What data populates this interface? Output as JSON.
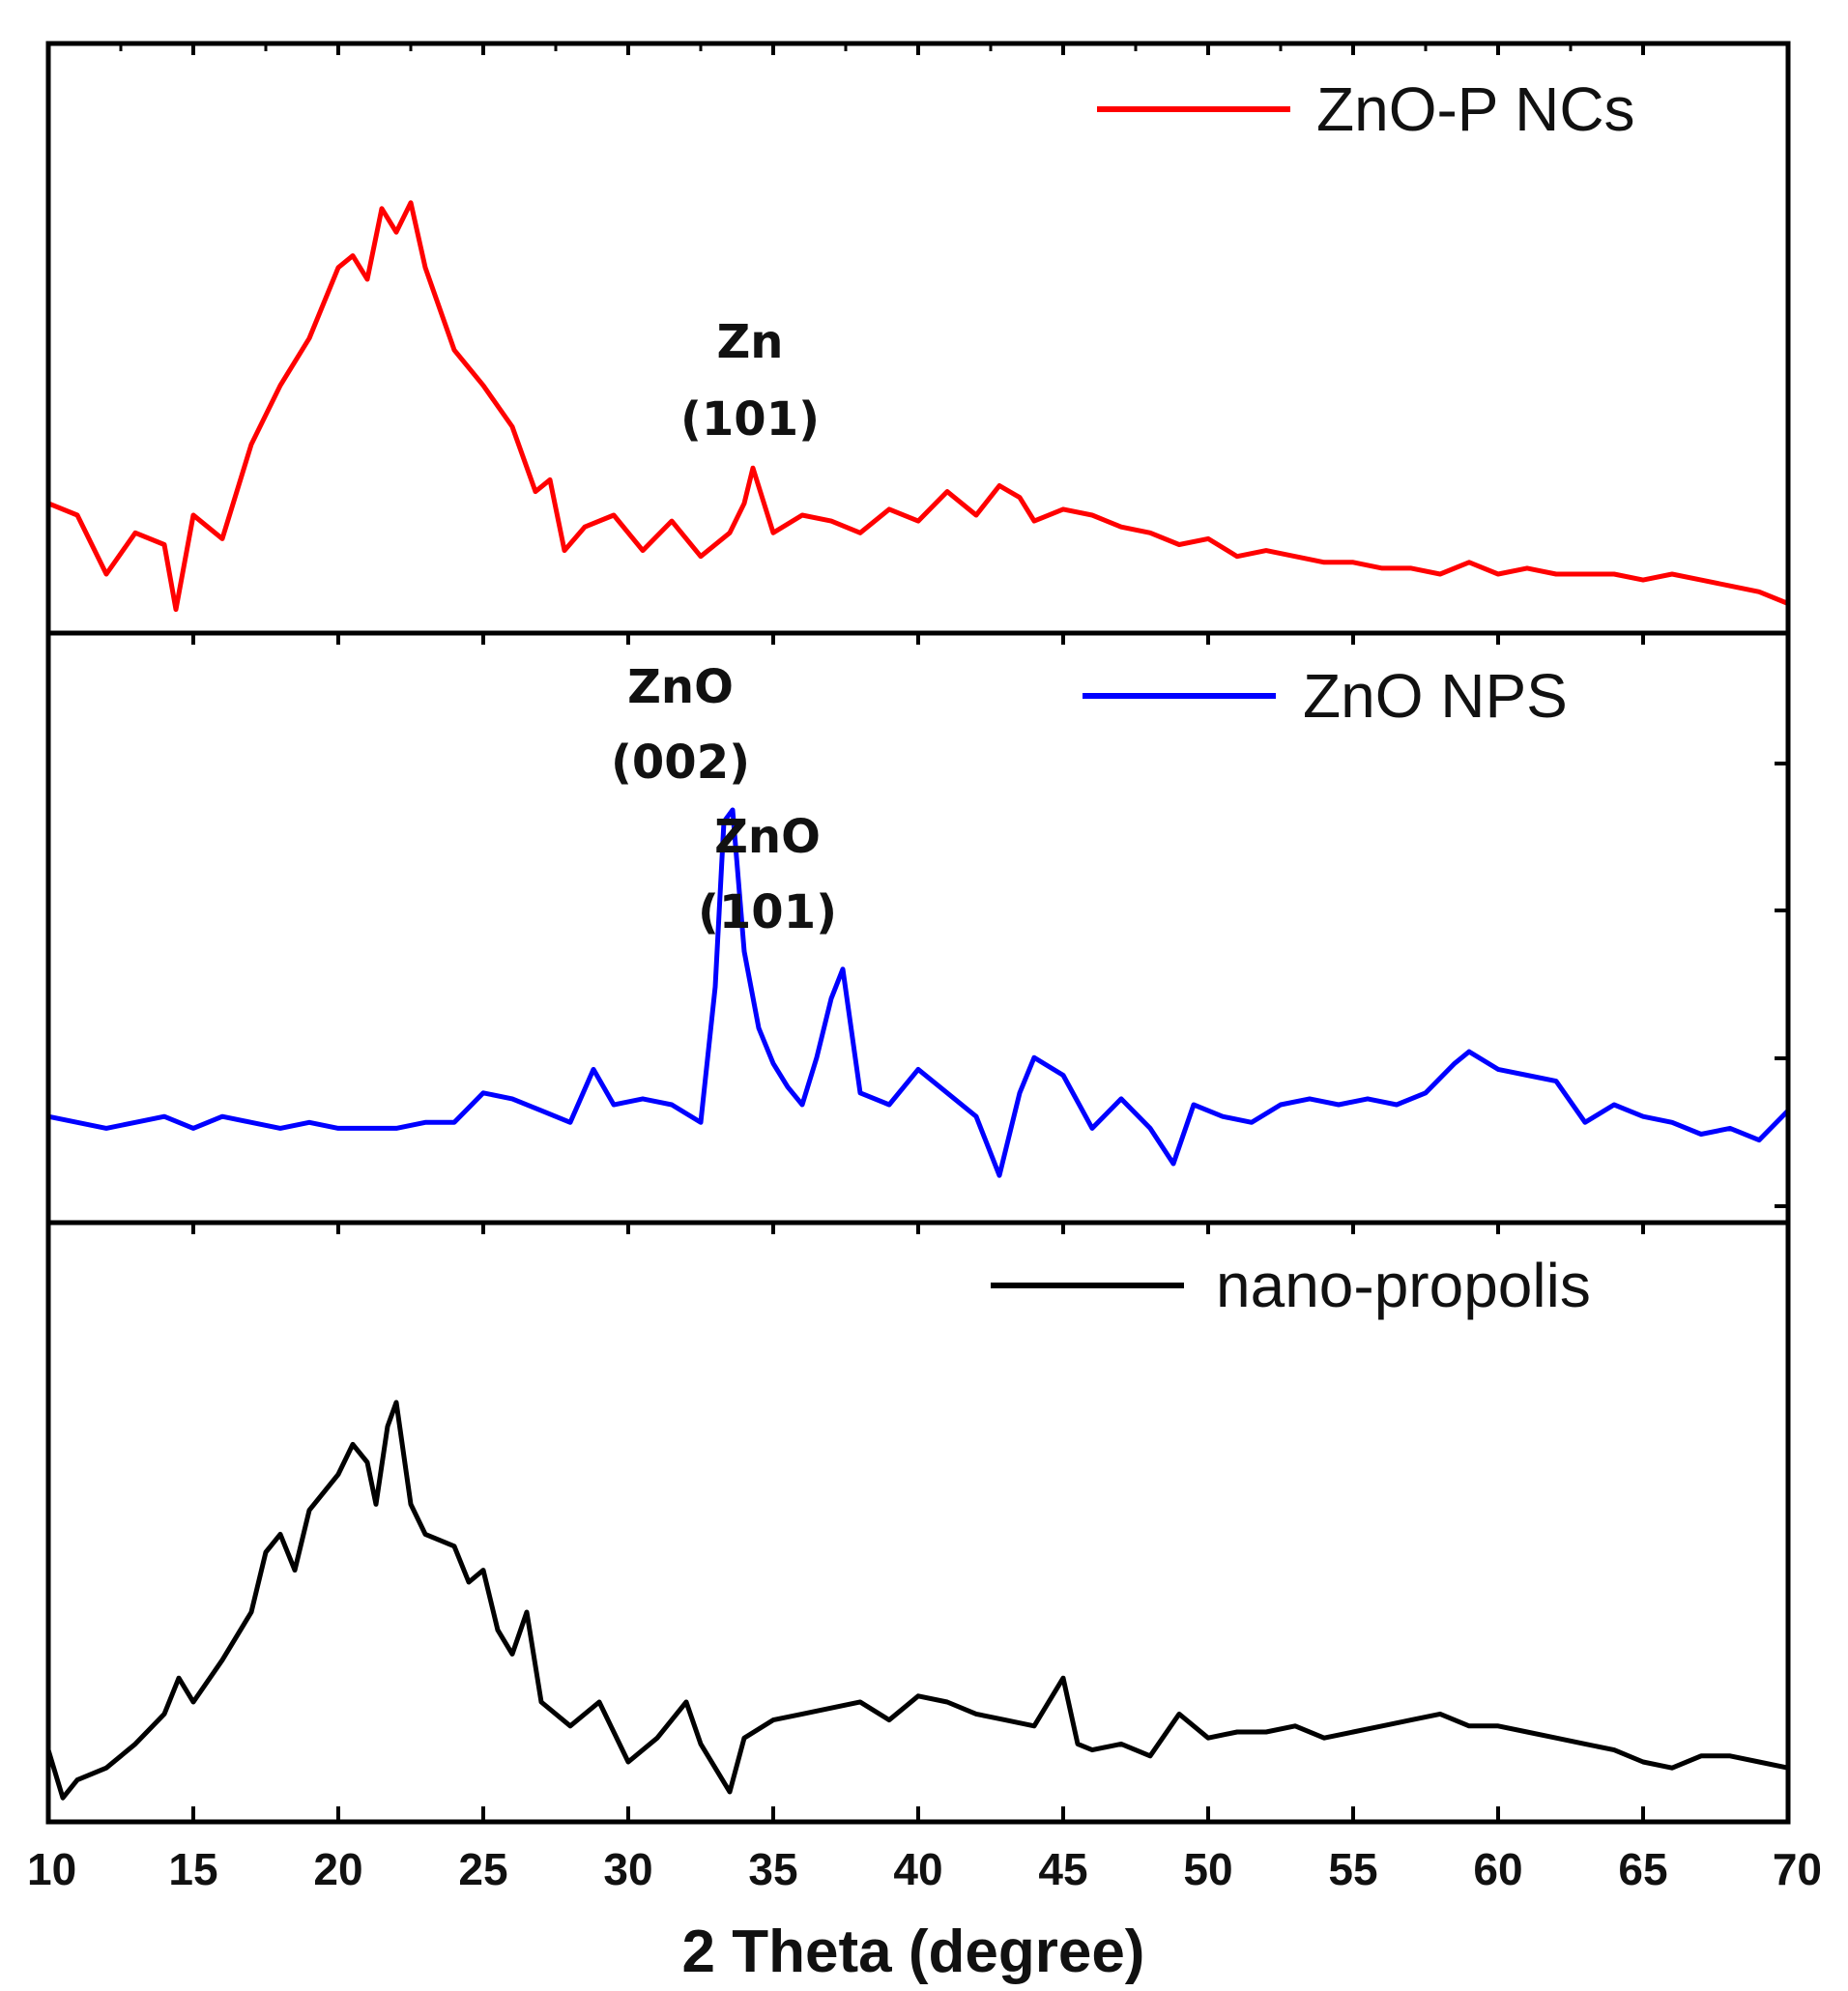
{
  "chart_data": {
    "type": "line",
    "title": "",
    "xlabel": "2 Theta (degree)",
    "ylabel": "",
    "xlim": [
      10,
      70
    ],
    "xticks": [
      10,
      15,
      20,
      25,
      30,
      35,
      40,
      45,
      50,
      55,
      60,
      65,
      70
    ],
    "xtick_labels": [
      "10",
      "15",
      "20",
      "25",
      "30",
      "35",
      "40",
      "45",
      "50",
      "55",
      "60",
      "65",
      "70"
    ],
    "grid": false,
    "stacked_panels": true,
    "panels": [
      {
        "legend": "ZnO-P NCs",
        "legend_placement": "top-right",
        "color": "#ff0000",
        "ylim": [
          0,
          1
        ],
        "x": [
          10,
          11,
          12,
          13,
          14,
          14.4,
          15,
          16,
          17,
          18,
          19,
          20,
          20.5,
          21,
          21.5,
          22,
          22.5,
          23,
          23.5,
          24,
          25,
          26,
          26.8,
          27.3,
          27.8,
          28.5,
          29.5,
          30.5,
          31.5,
          32.5,
          33.5,
          34,
          34.3,
          35,
          36,
          37,
          38,
          39,
          40,
          41,
          42,
          42.8,
          43.5,
          44,
          45,
          46,
          47,
          48,
          49,
          50,
          51,
          52,
          53,
          54,
          55,
          56,
          57,
          58,
          59,
          60,
          61,
          62,
          63,
          64,
          65,
          66,
          67,
          68,
          69,
          70
        ],
        "values": [
          0.22,
          0.2,
          0.1,
          0.17,
          0.15,
          0.04,
          0.2,
          0.16,
          0.32,
          0.42,
          0.5,
          0.62,
          0.64,
          0.6,
          0.72,
          0.68,
          0.73,
          0.62,
          0.55,
          0.48,
          0.42,
          0.35,
          0.24,
          0.26,
          0.14,
          0.18,
          0.2,
          0.14,
          0.19,
          0.13,
          0.17,
          0.22,
          0.28,
          0.17,
          0.2,
          0.19,
          0.17,
          0.21,
          0.19,
          0.24,
          0.2,
          0.25,
          0.23,
          0.19,
          0.21,
          0.2,
          0.18,
          0.17,
          0.15,
          0.16,
          0.13,
          0.14,
          0.13,
          0.12,
          0.12,
          0.11,
          0.11,
          0.1,
          0.12,
          0.1,
          0.11,
          0.1,
          0.1,
          0.1,
          0.09,
          0.1,
          0.09,
          0.08,
          0.07,
          0.05
        ]
      },
      {
        "legend": "ZnO  NPS",
        "legend_placement": "top-right",
        "color": "#0000ff",
        "ylim": [
          0,
          1
        ],
        "x": [
          10,
          11,
          12,
          13,
          14,
          15,
          16,
          17,
          18,
          19,
          20,
          21,
          22,
          23,
          24,
          25,
          26,
          27,
          28,
          28.8,
          29.5,
          30.5,
          31.5,
          32.5,
          33,
          33.3,
          33.6,
          34,
          34.5,
          35,
          35.5,
          36,
          36.5,
          37,
          37.4,
          38,
          39,
          40,
          41,
          42,
          42.8,
          43.5,
          44,
          45,
          46,
          47,
          48,
          48.8,
          49.5,
          50.5,
          51.5,
          52.5,
          53.5,
          54.5,
          55.5,
          56.5,
          57.5,
          58.5,
          59,
          60,
          61,
          62,
          63,
          64,
          65,
          66,
          67,
          68,
          69,
          70
        ],
        "values": [
          0.18,
          0.17,
          0.16,
          0.17,
          0.18,
          0.16,
          0.18,
          0.17,
          0.16,
          0.17,
          0.16,
          0.16,
          0.16,
          0.17,
          0.17,
          0.22,
          0.21,
          0.19,
          0.17,
          0.26,
          0.2,
          0.21,
          0.2,
          0.17,
          0.4,
          0.68,
          0.7,
          0.46,
          0.33,
          0.27,
          0.23,
          0.2,
          0.28,
          0.38,
          0.43,
          0.22,
          0.2,
          0.26,
          0.22,
          0.18,
          0.08,
          0.22,
          0.28,
          0.25,
          0.16,
          0.21,
          0.16,
          0.1,
          0.2,
          0.18,
          0.17,
          0.2,
          0.21,
          0.2,
          0.21,
          0.2,
          0.22,
          0.27,
          0.29,
          0.26,
          0.25,
          0.24,
          0.17,
          0.2,
          0.18,
          0.17,
          0.15,
          0.16,
          0.14,
          0.19
        ]
      },
      {
        "legend": "nano-propolis",
        "legend_placement": "top-right",
        "color": "#000000",
        "ylim": [
          0,
          1
        ],
        "x": [
          10,
          10.5,
          11,
          12,
          13,
          14,
          14.5,
          15,
          16,
          17,
          17.5,
          18,
          18.5,
          19,
          20,
          20.5,
          21,
          21.3,
          21.7,
          22,
          22.5,
          23,
          24,
          24.5,
          25,
          25.5,
          26,
          26.5,
          27,
          28,
          29,
          30,
          31,
          32,
          32.5,
          33,
          33.5,
          34,
          35,
          36,
          37,
          38,
          39,
          40,
          41,
          42,
          43,
          44,
          45,
          45.5,
          46,
          47,
          48,
          49,
          50,
          51,
          52,
          53,
          54,
          55,
          56,
          57,
          58,
          59,
          60,
          61,
          62,
          63,
          64,
          65,
          66,
          67,
          68,
          69,
          70
        ],
        "values": [
          0.12,
          0.04,
          0.07,
          0.09,
          0.13,
          0.18,
          0.24,
          0.2,
          0.27,
          0.35,
          0.45,
          0.48,
          0.42,
          0.52,
          0.58,
          0.63,
          0.6,
          0.53,
          0.66,
          0.7,
          0.53,
          0.48,
          0.46,
          0.4,
          0.42,
          0.32,
          0.28,
          0.35,
          0.2,
          0.16,
          0.2,
          0.1,
          0.14,
          0.2,
          0.13,
          0.09,
          0.05,
          0.14,
          0.17,
          0.18,
          0.19,
          0.2,
          0.17,
          0.21,
          0.2,
          0.18,
          0.17,
          0.16,
          0.24,
          0.13,
          0.12,
          0.13,
          0.11,
          0.18,
          0.14,
          0.15,
          0.15,
          0.16,
          0.14,
          0.15,
          0.16,
          0.17,
          0.18,
          0.16,
          0.16,
          0.15,
          0.14,
          0.13,
          0.12,
          0.1,
          0.09,
          0.11,
          0.11,
          0.1,
          0.09
        ]
      }
    ],
    "annotations": [
      {
        "panel": 0,
        "lines": [
          "Zn",
          "(101)"
        ],
        "x": 34.2
      },
      {
        "panel": 1,
        "lines": [
          "ZnO",
          "(002)"
        ],
        "x": 31.8
      },
      {
        "panel": 1,
        "lines": [
          "ZnO",
          "(101)"
        ],
        "x": 34.8
      }
    ]
  }
}
